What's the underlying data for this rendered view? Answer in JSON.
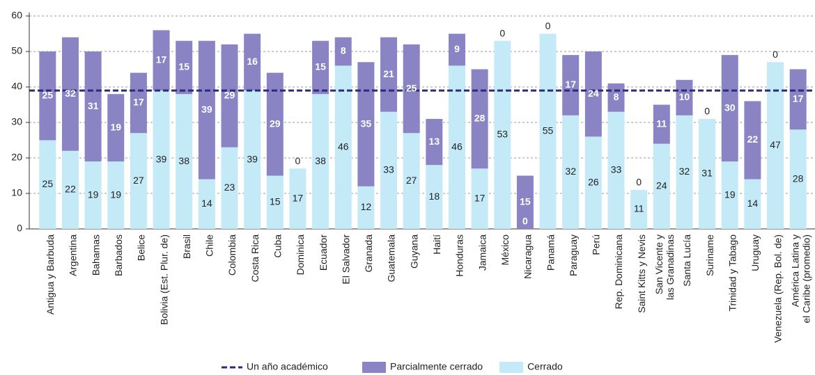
{
  "chart_data": {
    "type": "stacked_bar",
    "categories": [
      "Antigua y Barbuda",
      "Argentina",
      "Bahamas",
      "Barbados",
      "Belice",
      "Bolivia (Est. Plur. de)",
      "Brasil",
      "Chile",
      "Colombia",
      "Costa Rica",
      "Cuba",
      "Dominica",
      "Ecuador",
      "El Salvador",
      "Granada",
      "Guatemala",
      "Guyana",
      "Haití",
      "Honduras",
      "Jamaica",
      "México",
      "Nicaragua",
      "Panamá",
      "Paraguay",
      "Perú",
      "Rep. Dominicana",
      "Saint Kitts y Nevis",
      "San Vicente y\nlas Granadinas",
      "Santa Lucía",
      "Suriname",
      "Trinidad y Tabago",
      "Uruguay",
      "Venezuela (Rep. Bol. de)",
      "América Latina y\nel Caribe (promedio)"
    ],
    "series": [
      {
        "name": "Cerrado",
        "color": "#c4eaf8",
        "values": [
          25,
          22,
          19,
          19,
          27,
          39,
          38,
          14,
          23,
          39,
          15,
          17,
          38,
          46,
          12,
          33,
          27,
          18,
          46,
          17,
          53,
          0,
          55,
          32,
          26,
          33,
          11,
          24,
          32,
          31,
          19,
          14,
          47,
          28
        ]
      },
      {
        "name": "Parcialmente cerrado",
        "color": "#8a84c4",
        "values": [
          25,
          32,
          31,
          19,
          17,
          17,
          15,
          39,
          29,
          16,
          29,
          0,
          15,
          8,
          35,
          21,
          25,
          13,
          9,
          28,
          0,
          15,
          0,
          17,
          24,
          8,
          0,
          11,
          10,
          0,
          30,
          22,
          0,
          17
        ]
      }
    ],
    "reference_line": {
      "name": "Un año académico",
      "value": 39,
      "color": "#2b2a7c"
    },
    "ylim": [
      0,
      60
    ],
    "yticks": [
      0,
      10,
      20,
      30,
      40,
      50,
      60
    ],
    "grid": true
  }
}
